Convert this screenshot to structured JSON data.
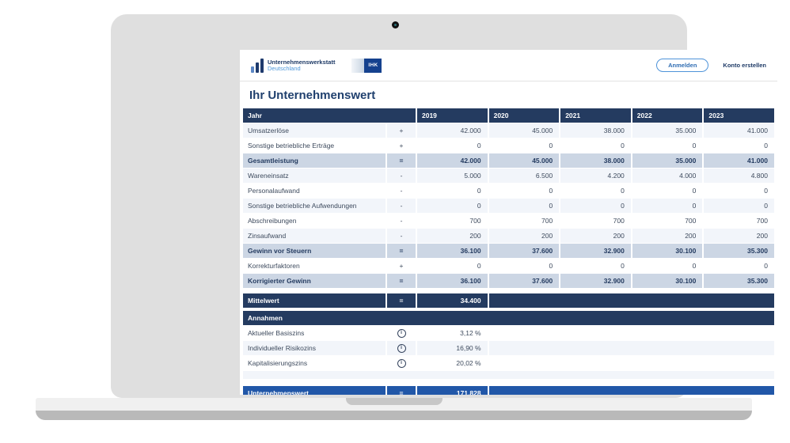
{
  "header": {
    "brand_line1": "Unternehmenswerkstatt",
    "brand_line2": "Deutschland",
    "ihk_label": "IHK",
    "login_label": "Anmelden",
    "register_label": "Konto erstellen"
  },
  "page_title": "Ihr Unternehmenswert",
  "valuation_table": {
    "year_header": {
      "label": "Jahr",
      "years": [
        "2019",
        "2020",
        "2021",
        "2022",
        "2023"
      ]
    },
    "rows": [
      {
        "label": "Umsatzerlöse",
        "op": "+",
        "values": [
          "42.000",
          "45.000",
          "38.000",
          "35.000",
          "41.000"
        ],
        "style": "light"
      },
      {
        "label": "Sonstige betriebliche Erträge",
        "op": "+",
        "values": [
          "0",
          "0",
          "0",
          "0",
          "0"
        ],
        "style": "white"
      },
      {
        "label": "Gesamtleistung",
        "op": "=",
        "values": [
          "42.000",
          "45.000",
          "38.000",
          "35.000",
          "41.000"
        ],
        "style": "highlight"
      },
      {
        "label": "Wareneinsatz",
        "op": "-",
        "values": [
          "5.000",
          "6.500",
          "4.200",
          "4.000",
          "4.800"
        ],
        "style": "light"
      },
      {
        "label": "Personalaufwand",
        "op": "-",
        "values": [
          "0",
          "0",
          "0",
          "0",
          "0"
        ],
        "style": "white"
      },
      {
        "label": "Sonstige betriebliche Aufwendungen",
        "op": "-",
        "values": [
          "0",
          "0",
          "0",
          "0",
          "0"
        ],
        "style": "light"
      },
      {
        "label": "Abschreibungen",
        "op": "-",
        "values": [
          "700",
          "700",
          "700",
          "700",
          "700"
        ],
        "style": "white"
      },
      {
        "label": "Zinsaufwand",
        "op": "-",
        "values": [
          "200",
          "200",
          "200",
          "200",
          "200"
        ],
        "style": "light"
      },
      {
        "label": "Gewinn vor Steuern",
        "op": "=",
        "values": [
          "36.100",
          "37.600",
          "32.900",
          "30.100",
          "35.300"
        ],
        "style": "highlight"
      },
      {
        "label": "Korrekturfaktoren",
        "op": "+",
        "values": [
          "0",
          "0",
          "0",
          "0",
          "0"
        ],
        "style": "white"
      },
      {
        "label": "Korrigierter Gewinn",
        "op": "=",
        "values": [
          "36.100",
          "37.600",
          "32.900",
          "30.100",
          "35.300"
        ],
        "style": "highlight"
      }
    ],
    "mittelwert": {
      "label": "Mittelwert",
      "op": "=",
      "value": "34.400"
    },
    "annahmen": {
      "header": "Annahmen",
      "rows": [
        {
          "label": "Aktueller Basiszins",
          "value": "3,12 %",
          "style": "white"
        },
        {
          "label": "Individueller Risikozins",
          "value": "16,90 %",
          "style": "light"
        },
        {
          "label": "Kapitalisierungszins",
          "value": "20,02 %",
          "style": "white"
        }
      ]
    },
    "unternehmenswert": {
      "label": "Unternehmenswert",
      "op": "=",
      "value": "171.828"
    }
  },
  "colors": {
    "navy": "#243b60",
    "accent_blue": "#2157a8",
    "highlight_row": "#ccd6e4",
    "light_row": "#f2f5fa",
    "brand_blue": "#4d96d9",
    "ihk_blue": "#15418e"
  }
}
